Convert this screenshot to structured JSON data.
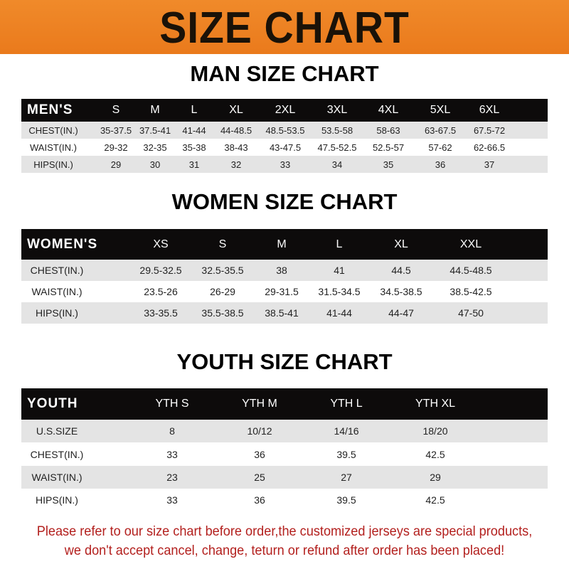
{
  "banner": {
    "title": "SIZE CHART"
  },
  "men": {
    "title": "MAN SIZE CHART",
    "header": [
      "MEN'S",
      "S",
      "M",
      "L",
      "XL",
      "2XL",
      "3XL",
      "4XL",
      "5XL",
      "6XL"
    ],
    "rows": [
      [
        "CHEST(IN.)",
        "35-37.5",
        "37.5-41",
        "41-44",
        "44-48.5",
        "48.5-53.5",
        "53.5-58",
        "58-63",
        "63-67.5",
        "67.5-72"
      ],
      [
        "WAIST(IN.)",
        "29-32",
        "32-35",
        "35-38",
        "38-43",
        "43-47.5",
        "47.5-52.5",
        "52.5-57",
        "57-62",
        "62-66.5"
      ],
      [
        "HIPS(IN.)",
        "29",
        "30",
        "31",
        "32",
        "33",
        "34",
        "35",
        "36",
        "37"
      ]
    ]
  },
  "women": {
    "title": "WOMEN SIZE CHART",
    "header": [
      "WOMEN'S",
      "XS",
      "S",
      "M",
      "L",
      "XL",
      "XXL"
    ],
    "rows": [
      [
        "CHEST(IN.)",
        "29.5-32.5",
        "32.5-35.5",
        "38",
        "41",
        "44.5",
        "44.5-48.5"
      ],
      [
        "WAIST(IN.)",
        "23.5-26",
        "26-29",
        "29-31.5",
        "31.5-34.5",
        "34.5-38.5",
        "38.5-42.5"
      ],
      [
        "HIPS(IN.)",
        "33-35.5",
        "35.5-38.5",
        "38.5-41",
        "41-44",
        "44-47",
        "47-50"
      ]
    ]
  },
  "youth": {
    "title": "YOUTH SIZE CHART",
    "header": [
      "YOUTH",
      "YTH S",
      "YTH M",
      "YTH L",
      "YTH XL"
    ],
    "rows": [
      [
        "U.S.SIZE",
        "8",
        "10/12",
        "14/16",
        "18/20"
      ],
      [
        "CHEST(IN.)",
        "33",
        "36",
        "39.5",
        "42.5"
      ],
      [
        "WAIST(IN.)",
        "23",
        "25",
        "27",
        "29"
      ],
      [
        "HIPS(IN.)",
        "33",
        "36",
        "39.5",
        "42.5"
      ]
    ]
  },
  "footer": {
    "line1": "Please refer to our size chart before order,the customized jerseys are special products,",
    "line2": "we don't accept cancel, change, teturn or refund after order has been placed!"
  },
  "colors": {
    "banner": "#ee8224",
    "header_row": "#0d0b0b",
    "stripe": "#e4e4e4",
    "footer_text": "#b3201e"
  }
}
